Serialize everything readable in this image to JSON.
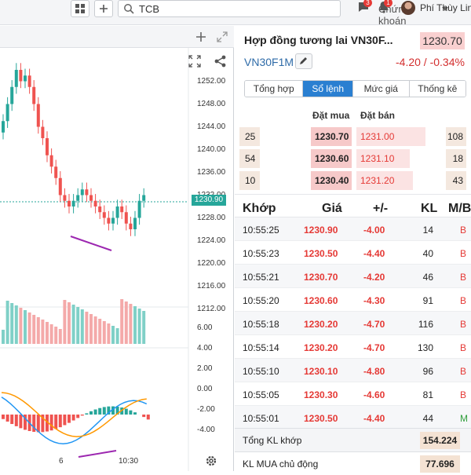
{
  "topbar": {
    "search_value": "TCB",
    "market_label": "Chứng khoán",
    "messages_badge": "3",
    "notifications_badge": "1",
    "user_name": "Phí Thùy Linh"
  },
  "chart": {
    "price_axis": [
      "1252.00",
      "1248.00",
      "1244.00",
      "1240.00",
      "1236.00",
      "1232.00",
      "1228.00",
      "1224.00",
      "1220.00",
      "1216.00",
      "1212.00"
    ],
    "current_price": "1230.90",
    "macd_axis": [
      "6.00",
      "4.00",
      "2.00",
      "0.00",
      "-2.00",
      "-4.00"
    ],
    "time_axis": [
      "6",
      "10:30"
    ],
    "colors": {
      "up": "#26a69a",
      "down": "#ef5350",
      "volume_up": "#7fd0c7",
      "volume_down": "#f4a9a9",
      "trend": "#9c27b0",
      "macd": "#2196f3",
      "signal": "#ff9800"
    }
  },
  "contract": {
    "title": "Hợp đồng tương lai VN30F...",
    "price": "1230.70",
    "code": "VN30F1M",
    "change": "-4.20 / -0.34%"
  },
  "tabs": [
    "Tổng hợp",
    "Sổ lệnh",
    "Mức giá",
    "Thống kê"
  ],
  "orderbook": {
    "buy_header": "Đặt mua",
    "sell_header": "Đặt bán",
    "rows": [
      {
        "buy_vol": "25",
        "buy_price": "1230.70",
        "sell_price": "1231.00",
        "sell_vol": "108"
      },
      {
        "buy_vol": "54",
        "buy_price": "1230.60",
        "sell_price": "1231.10",
        "sell_vol": "18"
      },
      {
        "buy_vol": "10",
        "buy_price": "1230.40",
        "sell_price": "1231.20",
        "sell_vol": "43"
      }
    ]
  },
  "trades": {
    "headers": [
      "Khớp",
      "Giá",
      "+/-",
      "KL",
      "M/B"
    ],
    "rows": [
      {
        "time": "10:55:25",
        "price": "1230.90",
        "change": "-4.00",
        "vol": "14",
        "side": "B"
      },
      {
        "time": "10:55:23",
        "price": "1230.50",
        "change": "-4.40",
        "vol": "40",
        "side": "B"
      },
      {
        "time": "10:55:21",
        "price": "1230.70",
        "change": "-4.20",
        "vol": "46",
        "side": "B"
      },
      {
        "time": "10:55:20",
        "price": "1230.60",
        "change": "-4.30",
        "vol": "91",
        "side": "B"
      },
      {
        "time": "10:55:18",
        "price": "1230.20",
        "change": "-4.70",
        "vol": "116",
        "side": "B"
      },
      {
        "time": "10:55:14",
        "price": "1230.20",
        "change": "-4.70",
        "vol": "130",
        "side": "B"
      },
      {
        "time": "10:55:10",
        "price": "1230.10",
        "change": "-4.80",
        "vol": "96",
        "side": "B"
      },
      {
        "time": "10:55:05",
        "price": "1230.30",
        "change": "-4.60",
        "vol": "81",
        "side": "B"
      },
      {
        "time": "10:55:01",
        "price": "1230.50",
        "change": "-4.40",
        "vol": "44",
        "side": "M"
      }
    ]
  },
  "summary": [
    {
      "label": "Tổng KL khớp",
      "value": "154.224"
    },
    {
      "label": "KL MUA chủ động",
      "value": "77.696"
    }
  ]
}
